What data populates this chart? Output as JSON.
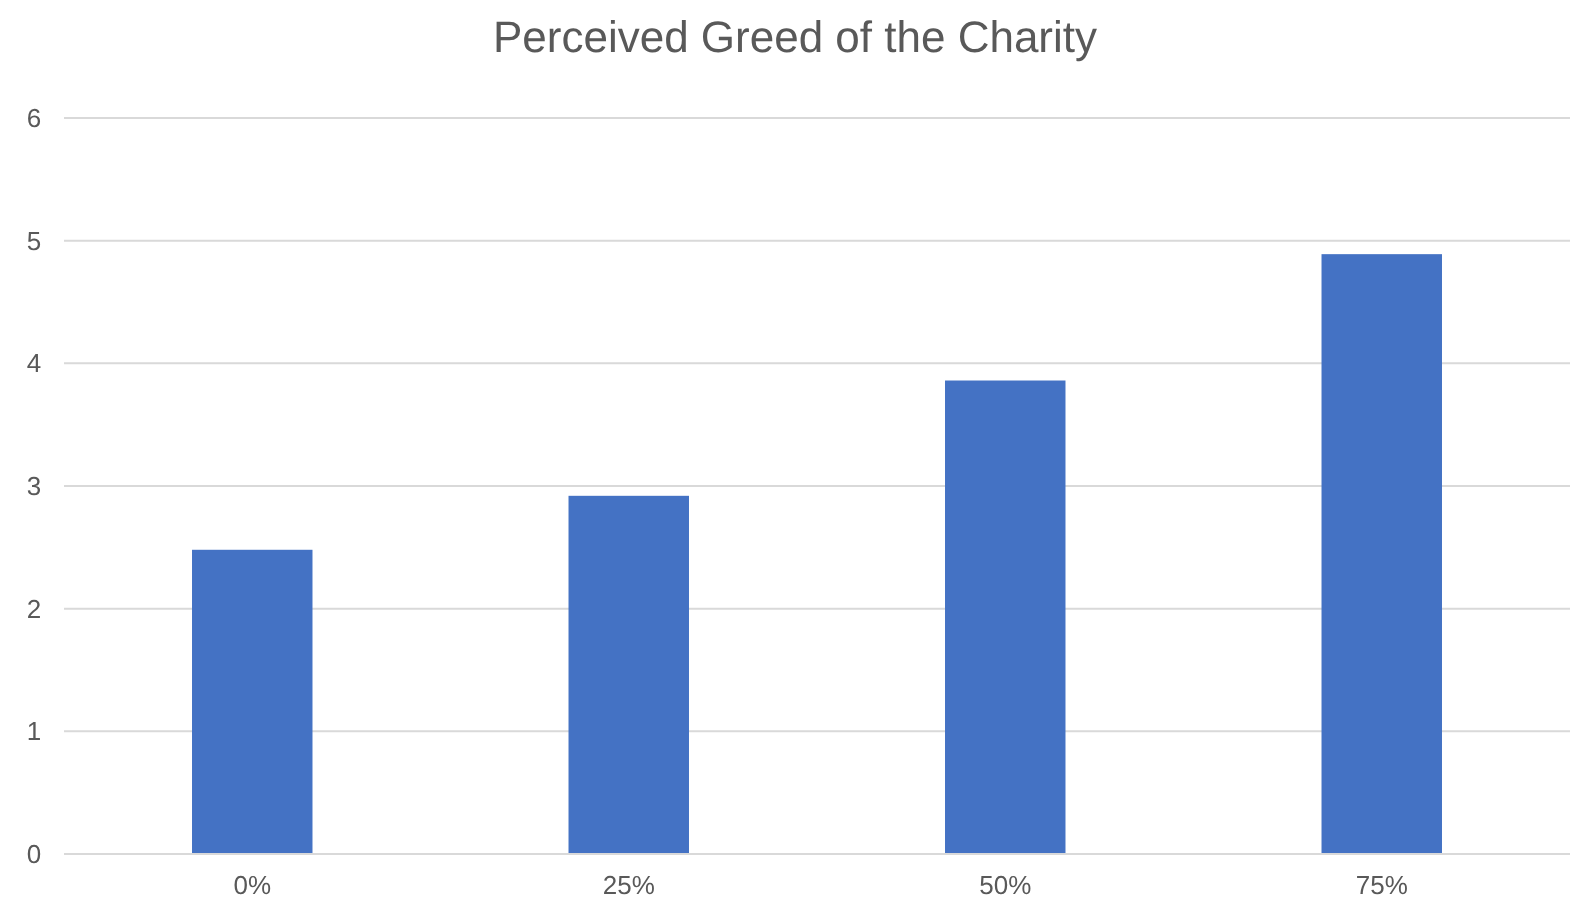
{
  "chart_data": {
    "type": "bar",
    "title": "Perceived Greed of the Charity",
    "categories": [
      "0%",
      "25%",
      "50%",
      "75%"
    ],
    "values": [
      2.48,
      2.92,
      3.86,
      4.89
    ],
    "color": "#4472c4",
    "ylim": [
      0,
      6
    ],
    "yticks": [
      0,
      1,
      2,
      3,
      4,
      5,
      6
    ],
    "grid": "y"
  }
}
